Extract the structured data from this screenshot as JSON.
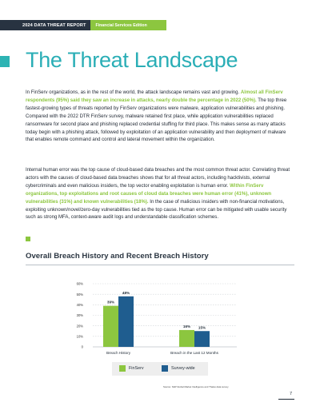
{
  "header": {
    "report": "2024 DATA THREAT REPORT",
    "edition": "Financial Services Edition"
  },
  "title": "The Threat Landscape",
  "paragraph1": {
    "part1": "In FinServ organizations, as in the rest of the world, the attack landscape remains vast and growing. ",
    "highlight": "Almost all FinServ respondents (95%) said they saw an increase in attacks, nearly double the percentage in 2022 (50%).",
    "part2": " The top three fastest-growing types of threats reported by FinServ organizations were malware, application vulnerabilities and phishing. Compared with the 2022 DTR FinServ survey, malware retained first place, while application vulnerabilities replaced ransomware for second place and phishing replaced credential stuffing for third place. This makes sense as many attacks today begin with a phishing attack, followed by exploitation of an application vulnerability and then deployment of malware that enables remote command and control and lateral movement within the organization."
  },
  "paragraph2": {
    "part1": "Internal human error was the top cause of cloud-based data breaches and the most common threat actor. Correlating threat actors with the causes of cloud-based data breaches shows that for all threat actors, including hacktivists, external cybercriminals and even malicious insiders, the top vector enabling exploitation is human error. ",
    "highlight": "Within FinServ organizations, top exploitations and root causes of cloud data breaches were human error (41%), unknown vulnerabilities (31%) and known vulnerabilities (18%).",
    "part2": " In the case of malicious insiders with non-financial motivations, exploiting unknown/novel/zero-day vulnerabilities tied as the top cause. Human error can be mitigated with usable security such as strong MFA, context-aware audit logs and understandable classification schemes."
  },
  "chart_title": "Overall Breach History and Recent Breach History",
  "chart_data": {
    "type": "bar",
    "categories": [
      "Breach History",
      "Breach in the Last 12 Months"
    ],
    "series": [
      {
        "name": "FinServ",
        "values": [
          39,
          16
        ],
        "labels": [
          "39%",
          "16%"
        ],
        "color": "#8cc63f"
      },
      {
        "name": "Survey-wide",
        "values": [
          48,
          15
        ],
        "labels": [
          "48%",
          "15%"
        ],
        "color": "#1f5d8f"
      }
    ],
    "yticks": [
      "0",
      "10%",
      "20%",
      "30%",
      "40%",
      "50%",
      "60%"
    ],
    "ylim": [
      0,
      60
    ],
    "grid": true,
    "legend": "bottom"
  },
  "source": "Source: S&P Global Market Intelligence and Thales data survey",
  "page_number": "7"
}
